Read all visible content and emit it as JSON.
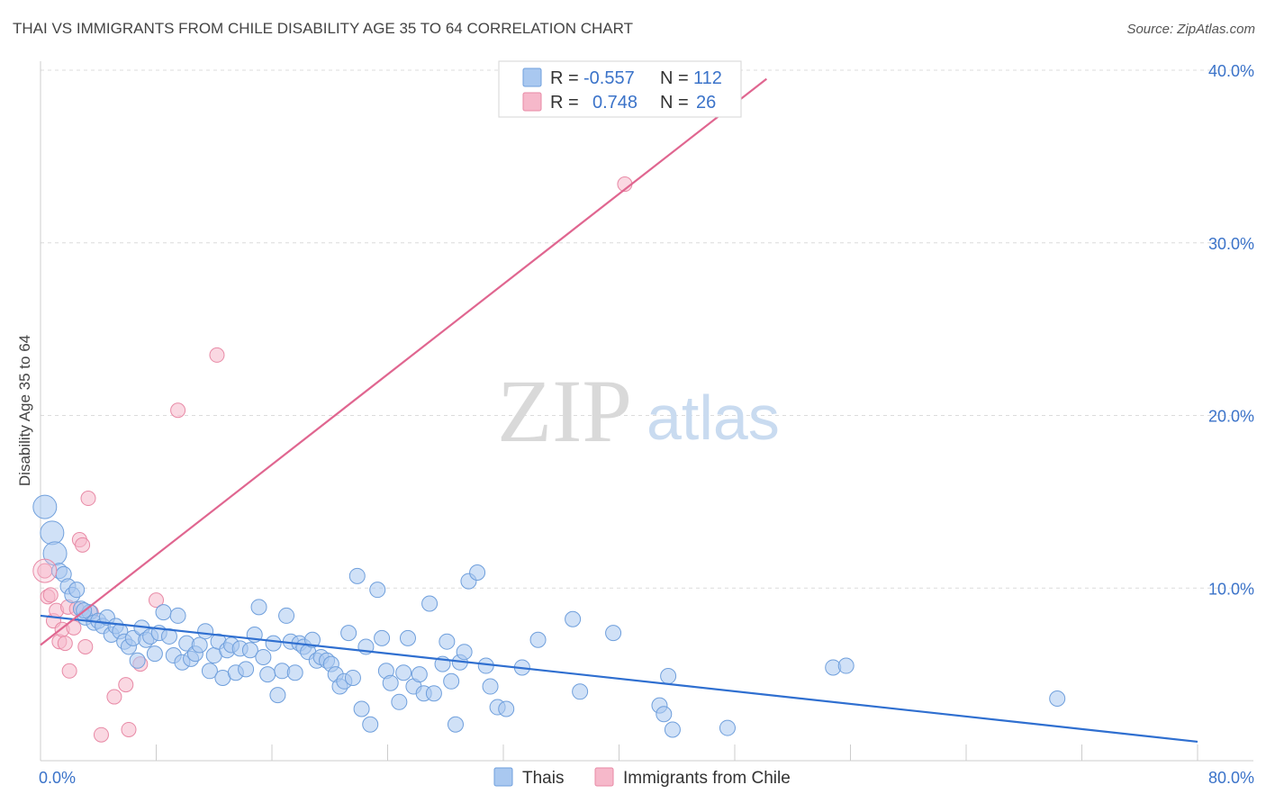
{
  "header": {
    "title": "THAI VS IMMIGRANTS FROM CHILE DISABILITY AGE 35 TO 64 CORRELATION CHART",
    "source": "Source: ZipAtlas.com"
  },
  "watermark": {
    "zip": "ZIP",
    "atlas": "atlas"
  },
  "legend": {
    "rows": [
      {
        "r_label": "R =",
        "r_value": "-0.557",
        "n_label": "N =",
        "n_value": "112",
        "color": "#a9c8f0"
      },
      {
        "r_label": "R =",
        "r_value": "0.748",
        "n_label": "N =",
        "n_value": "26",
        "color": "#f6b8ca"
      }
    ]
  },
  "bottom_legend": [
    {
      "label": "Thais",
      "color": "#a9c8f0"
    },
    {
      "label": "Immigrants from Chile",
      "color": "#f6b8ca"
    }
  ],
  "colors": {
    "thais_fill": "#a9c8f0",
    "thais_stroke": "#6f9fdc",
    "thais_line": "#2f6fd0",
    "chile_fill": "#f6b8ca",
    "chile_stroke": "#e88aa6",
    "chile_line": "#e06690"
  },
  "chart_data": {
    "type": "scatter",
    "title": "THAI VS IMMIGRANTS FROM CHILE DISABILITY AGE 35 TO 64 CORRELATION CHART",
    "xlabel": "",
    "ylabel": "Disability Age 35 to 64",
    "xlim": [
      0,
      80
    ],
    "ylim": [
      0,
      40
    ],
    "x_tick_labels": [
      "0.0%",
      "80.0%"
    ],
    "y_ticks": [
      10,
      20,
      30,
      40
    ],
    "y_tick_labels": [
      "10.0%",
      "20.0%",
      "30.0%",
      "40.0%"
    ],
    "grid": true,
    "legend_position": "top-center",
    "series": [
      {
        "name": "Thais",
        "r": -0.557,
        "n": 112,
        "trend": {
          "x": [
            0,
            80
          ],
          "y": [
            8.4,
            1.1
          ]
        },
        "points": [
          [
            0.3,
            14.7
          ],
          [
            0.8,
            13.2
          ],
          [
            1.0,
            12.0
          ],
          [
            1.3,
            11.0
          ],
          [
            1.6,
            10.8
          ],
          [
            1.9,
            10.1
          ],
          [
            2.2,
            9.6
          ],
          [
            2.5,
            9.9
          ],
          [
            2.8,
            8.8
          ],
          [
            3.1,
            8.3
          ],
          [
            3.4,
            8.6
          ],
          [
            3.7,
            8.0
          ],
          [
            4.0,
            8.1
          ],
          [
            4.3,
            7.8
          ],
          [
            4.6,
            8.3
          ],
          [
            4.9,
            7.3
          ],
          [
            5.2,
            7.8
          ],
          [
            5.5,
            7.5
          ],
          [
            5.8,
            6.9
          ],
          [
            6.1,
            6.6
          ],
          [
            6.4,
            7.1
          ],
          [
            6.7,
            5.8
          ],
          [
            7.0,
            7.7
          ],
          [
            7.3,
            7.0
          ],
          [
            7.6,
            7.2
          ],
          [
            7.9,
            6.2
          ],
          [
            8.2,
            7.4
          ],
          [
            8.5,
            8.6
          ],
          [
            8.9,
            7.2
          ],
          [
            9.2,
            6.1
          ],
          [
            9.5,
            8.4
          ],
          [
            9.8,
            5.7
          ],
          [
            10.1,
            6.8
          ],
          [
            10.4,
            5.9
          ],
          [
            10.7,
            6.2
          ],
          [
            11.0,
            6.7
          ],
          [
            11.4,
            7.5
          ],
          [
            11.7,
            5.2
          ],
          [
            12.0,
            6.1
          ],
          [
            12.3,
            6.9
          ],
          [
            12.6,
            4.8
          ],
          [
            12.9,
            6.4
          ],
          [
            13.2,
            6.7
          ],
          [
            13.5,
            5.1
          ],
          [
            13.8,
            6.5
          ],
          [
            14.2,
            5.3
          ],
          [
            14.5,
            6.4
          ],
          [
            14.8,
            7.3
          ],
          [
            15.1,
            8.9
          ],
          [
            15.4,
            6.0
          ],
          [
            15.7,
            5.0
          ],
          [
            16.1,
            6.8
          ],
          [
            16.4,
            3.8
          ],
          [
            16.7,
            5.2
          ],
          [
            17.0,
            8.4
          ],
          [
            17.3,
            6.9
          ],
          [
            17.6,
            5.1
          ],
          [
            17.9,
            6.8
          ],
          [
            18.2,
            6.6
          ],
          [
            18.5,
            6.3
          ],
          [
            18.8,
            7.0
          ],
          [
            19.1,
            5.8
          ],
          [
            19.4,
            6.0
          ],
          [
            19.8,
            5.8
          ],
          [
            20.1,
            5.6
          ],
          [
            20.4,
            5.0
          ],
          [
            20.7,
            4.3
          ],
          [
            21.0,
            4.6
          ],
          [
            21.3,
            7.4
          ],
          [
            21.6,
            4.8
          ],
          [
            21.9,
            10.7
          ],
          [
            22.2,
            3.0
          ],
          [
            22.5,
            6.6
          ],
          [
            22.8,
            2.1
          ],
          [
            23.3,
            9.9
          ],
          [
            23.6,
            7.1
          ],
          [
            23.9,
            5.2
          ],
          [
            24.2,
            4.5
          ],
          [
            24.8,
            3.4
          ],
          [
            25.1,
            5.1
          ],
          [
            25.4,
            7.1
          ],
          [
            25.8,
            4.3
          ],
          [
            26.2,
            5.0
          ],
          [
            26.5,
            3.9
          ],
          [
            26.9,
            9.1
          ],
          [
            27.2,
            3.9
          ],
          [
            27.8,
            5.6
          ],
          [
            28.1,
            6.9
          ],
          [
            28.4,
            4.6
          ],
          [
            28.7,
            2.1
          ],
          [
            29.0,
            5.7
          ],
          [
            29.3,
            6.3
          ],
          [
            29.6,
            10.4
          ],
          [
            30.2,
            10.9
          ],
          [
            30.8,
            5.5
          ],
          [
            31.1,
            4.3
          ],
          [
            31.6,
            3.1
          ],
          [
            32.2,
            3.0
          ],
          [
            33.3,
            5.4
          ],
          [
            34.4,
            7.0
          ],
          [
            36.8,
            8.2
          ],
          [
            37.3,
            4.0
          ],
          [
            39.6,
            7.4
          ],
          [
            42.8,
            3.2
          ],
          [
            43.1,
            2.7
          ],
          [
            43.4,
            4.9
          ],
          [
            43.7,
            1.8
          ],
          [
            47.5,
            1.9
          ],
          [
            54.8,
            5.4
          ],
          [
            55.7,
            5.5
          ],
          [
            70.3,
            3.6
          ],
          [
            3.0,
            8.7
          ]
        ],
        "point_sizes": {
          "large": [
            [
              0.3,
              14.7
            ],
            [
              0.8,
              13.2
            ],
            [
              1.0,
              12.0
            ]
          ]
        }
      },
      {
        "name": "Immigrants from Chile",
        "r": 0.748,
        "n": 26,
        "trend": {
          "x": [
            0,
            50.2
          ],
          "y": [
            6.7,
            39.5
          ]
        },
        "points": [
          [
            0.3,
            11.0
          ],
          [
            0.5,
            9.5
          ],
          [
            0.7,
            9.6
          ],
          [
            0.9,
            8.1
          ],
          [
            1.1,
            8.7
          ],
          [
            1.3,
            6.9
          ],
          [
            1.5,
            7.6
          ],
          [
            1.7,
            6.8
          ],
          [
            1.9,
            8.9
          ],
          [
            2.0,
            5.2
          ],
          [
            2.3,
            7.7
          ],
          [
            2.5,
            8.8
          ],
          [
            2.7,
            12.8
          ],
          [
            2.9,
            12.5
          ],
          [
            3.1,
            6.6
          ],
          [
            3.3,
            15.2
          ],
          [
            3.5,
            8.6
          ],
          [
            4.2,
            1.5
          ],
          [
            5.1,
            3.7
          ],
          [
            5.9,
            4.4
          ],
          [
            6.1,
            1.8
          ],
          [
            6.9,
            5.6
          ],
          [
            8.0,
            9.3
          ],
          [
            9.5,
            20.3
          ],
          [
            12.2,
            23.5
          ],
          [
            40.4,
            33.4
          ]
        ]
      }
    ]
  }
}
